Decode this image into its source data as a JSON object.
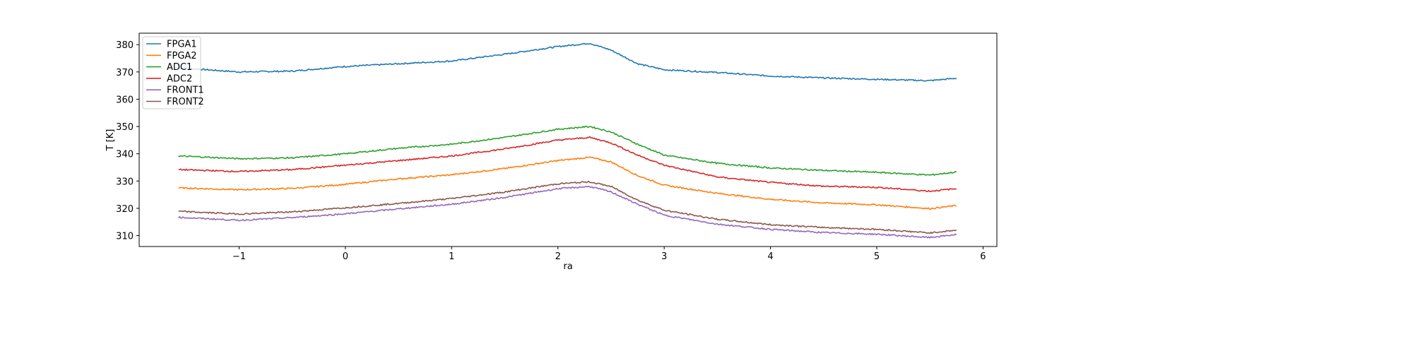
{
  "chart_data": {
    "type": "line",
    "title": "",
    "xlabel": "ra",
    "ylabel": "T [K]",
    "xlim": [
      -1.94,
      6.13
    ],
    "ylim": [
      306,
      384.2
    ],
    "xticks": [
      -1,
      0,
      1,
      2,
      3,
      4,
      5,
      6
    ],
    "xtick_labels": [
      "−1",
      "0",
      "1",
      "2",
      "3",
      "4",
      "5",
      "6"
    ],
    "yticks": [
      310,
      320,
      330,
      340,
      350,
      360,
      370,
      380
    ],
    "ytick_labels": [
      "310",
      "320",
      "330",
      "340",
      "350",
      "360",
      "370",
      "380"
    ],
    "grid": false,
    "legend": "top-left",
    "x": [
      -1.57,
      -1,
      -0.5,
      0,
      0.5,
      1,
      1.5,
      2,
      2.3,
      2.5,
      2.75,
      3,
      3.5,
      4,
      4.5,
      5,
      5.5,
      5.75
    ],
    "series": [
      {
        "name": "FPGA1",
        "color": "#1f77b4",
        "values": [
          371.5,
          370,
          370.3,
          372,
          373,
          374,
          376.5,
          379.3,
          380.5,
          378,
          373,
          370.8,
          369.8,
          368.5,
          367.8,
          367.3,
          366.8,
          367.7
        ]
      },
      {
        "name": "FPGA2",
        "color": "#ff7f0e",
        "values": [
          327.5,
          326.8,
          327.3,
          328.8,
          330.8,
          332.3,
          334.6,
          337.5,
          338.7,
          337,
          332,
          328.5,
          325.5,
          323.3,
          322,
          321.3,
          319.9,
          321
        ]
      },
      {
        "name": "ADC1",
        "color": "#2ca02c",
        "values": [
          339.2,
          338.2,
          338.5,
          340,
          342,
          343.5,
          346,
          349,
          350,
          348,
          343.5,
          339.5,
          336.5,
          334.8,
          333.9,
          333.2,
          332.2,
          333.3
        ]
      },
      {
        "name": "ADC2",
        "color": "#d62728",
        "values": [
          334.2,
          333.5,
          334.2,
          335.8,
          337.5,
          339.2,
          341.8,
          345,
          346,
          344,
          339.5,
          335.8,
          331.5,
          329.5,
          328.1,
          327.7,
          326.3,
          327.2
        ]
      },
      {
        "name": "FRONT1",
        "color": "#9467bd",
        "values": [
          316.7,
          315.6,
          316.6,
          318,
          319.8,
          321.5,
          324,
          327.2,
          328,
          326,
          321.5,
          317.5,
          314.2,
          312.3,
          311.1,
          310.5,
          309.3,
          310.4
        ]
      },
      {
        "name": "FRONT2",
        "color": "#8c564b",
        "values": [
          318.9,
          317.9,
          318.7,
          320.2,
          321.8,
          323.6,
          326,
          329,
          329.7,
          328,
          323,
          319.3,
          316,
          314,
          313,
          312.3,
          311,
          312
        ]
      }
    ]
  }
}
